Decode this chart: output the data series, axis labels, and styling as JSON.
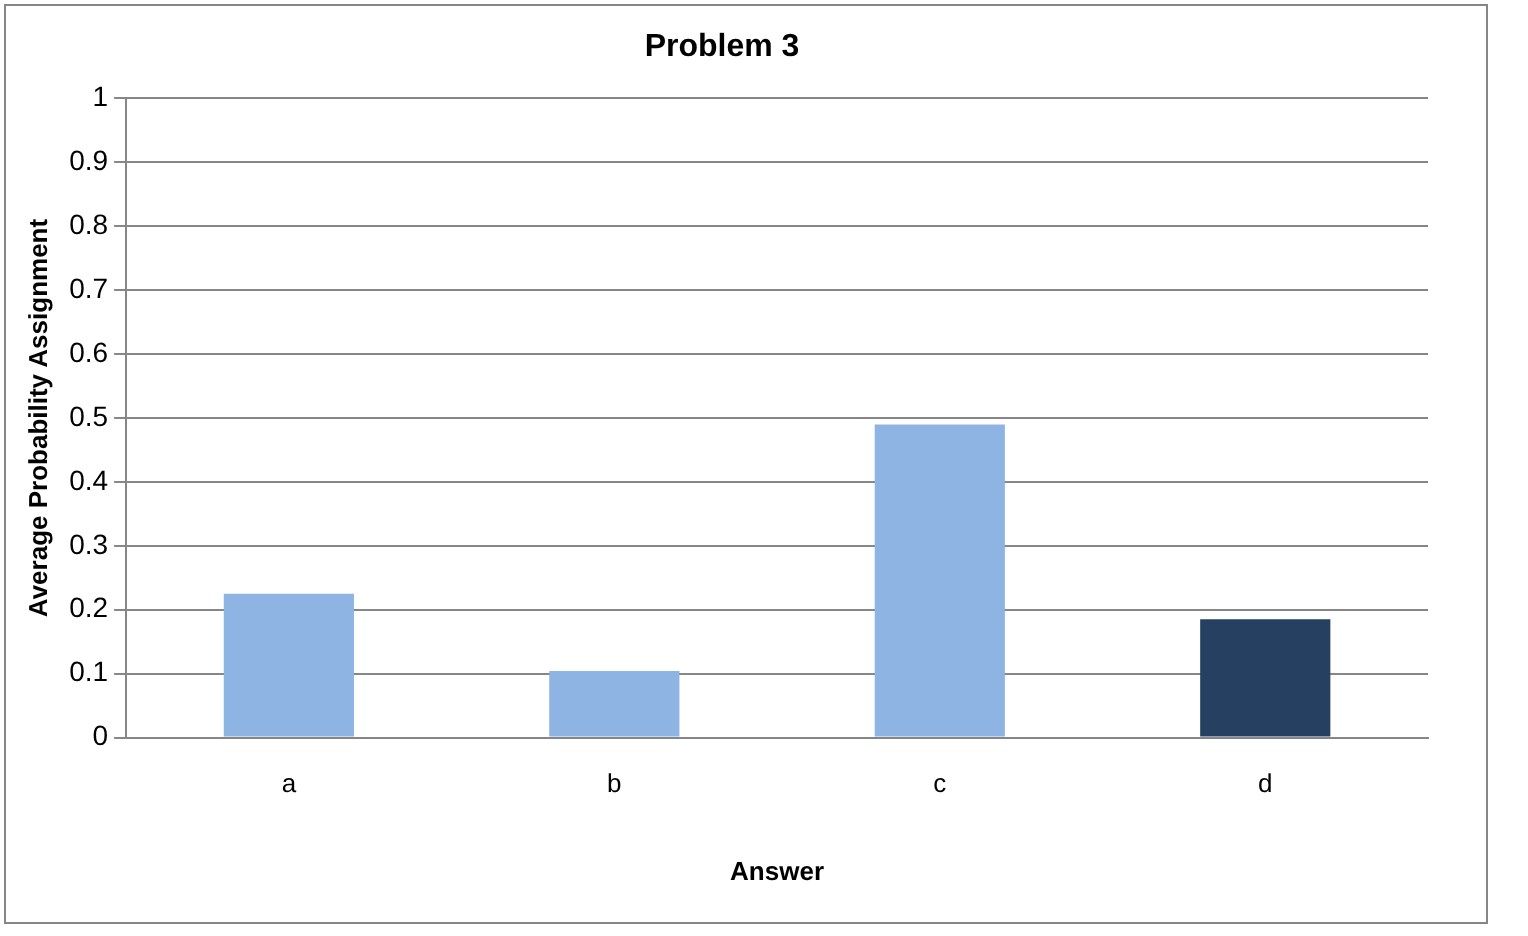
{
  "chart_data": {
    "type": "bar",
    "title": "Problem 3",
    "xlabel": "Answer",
    "ylabel": "Average Probability Assignment",
    "categories": [
      "a",
      "b",
      "c",
      "d"
    ],
    "values": [
      0.225,
      0.104,
      0.49,
      0.185
    ],
    "colors": [
      "#8eb4e3",
      "#8eb4e3",
      "#8eb4e3",
      "#254061"
    ],
    "ylim": [
      0,
      1
    ],
    "yticks": [
      0,
      0.1,
      0.2,
      0.3,
      0.4,
      0.5,
      0.6,
      0.7,
      0.8,
      0.9,
      1
    ],
    "grid": "y",
    "legend": false
  }
}
